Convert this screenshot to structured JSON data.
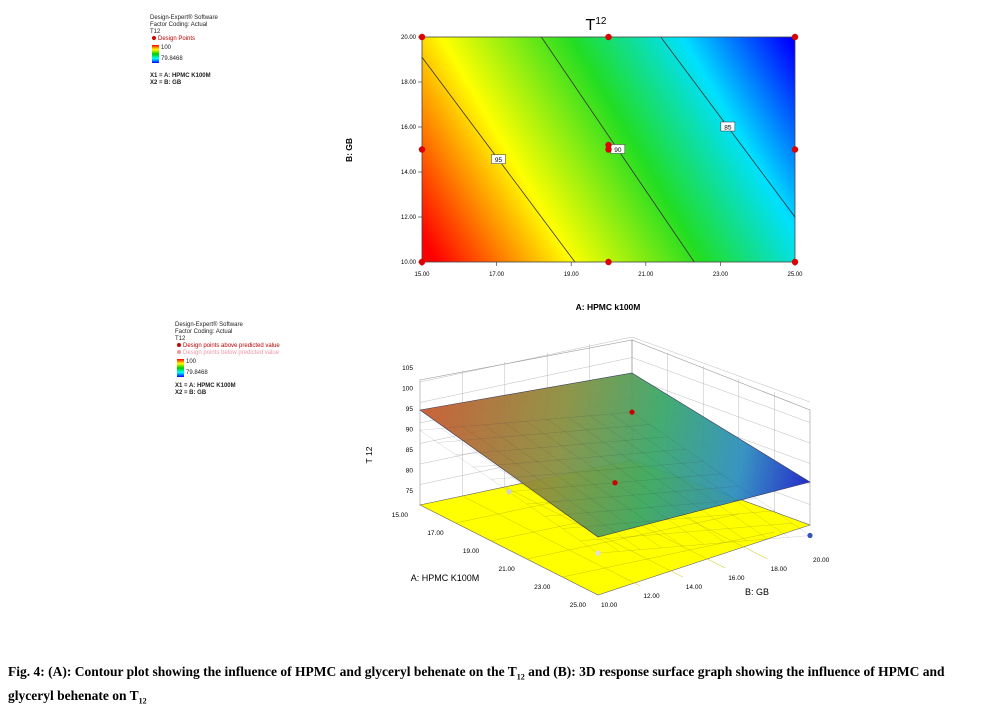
{
  "contour": {
    "software": "Design-Expert® Software",
    "factor_coding": "Factor Coding: Actual",
    "response": "T12",
    "design_points": "Design Points",
    "range_high": "100",
    "range_low": "79.8468",
    "x1": "X1 = A: HPMC K100M",
    "x2": "X2 = B: GB",
    "title_main": "T",
    "title_sup": "12",
    "xlabel": "A: HPMC k100M",
    "ylabel": "B: GB"
  },
  "surface": {
    "software": "Design-Expert® Software",
    "factor_coding": "Factor Coding: Actual",
    "response": "T12",
    "above": "Design points above predicted value",
    "below": "Design points below predicted value",
    "range_high": "100",
    "range_low": "79.8468",
    "x1": "X1 = A: HPMC K100M",
    "x2": "X2 = B: GB",
    "zlabel": "T 12",
    "alabel": "A: HPMC K100M",
    "blabel": "B: GB"
  },
  "caption": {
    "part1": "Fig. 4: (A): Contour plot showing the influence of HPMC and glyceryl behenate on the T",
    "sub1": "12",
    "part2": " and (B): 3D response surface graph showing the influence of HPMC and glyceryl behenate on T",
    "sub2": "12"
  },
  "chart_data": [
    {
      "type": "contour",
      "title": "T12",
      "xlabel": "A: HPMC k100M",
      "ylabel": "B: GB",
      "xlim": [
        15,
        25
      ],
      "ylim": [
        10,
        20
      ],
      "xticks": [
        "15.00",
        "17.00",
        "19.00",
        "21.00",
        "23.00",
        "25.00"
      ],
      "yticks": [
        "10.00",
        "12.00",
        "14.00",
        "16.00",
        "18.00",
        "20.00"
      ],
      "color_scale": [
        "#ff0000",
        "#ffff00",
        "#00cc00",
        "#00ffff",
        "#0000ff"
      ],
      "contour_lines": [
        {
          "level": "95",
          "points": [
            [
              15,
              19.1
            ],
            [
              19.1,
              10
            ]
          ]
        },
        {
          "level": "90",
          "points": [
            [
              18.2,
              20
            ],
            [
              22.3,
              10
            ]
          ]
        },
        {
          "level": "85",
          "points": [
            [
              21.4,
              20
            ],
            [
              25,
              12.0
            ]
          ]
        }
      ],
      "design_points": [
        [
          15,
          10
        ],
        [
          15,
          15
        ],
        [
          15,
          20
        ],
        [
          20,
          10
        ],
        [
          20,
          15
        ],
        [
          20,
          15.2
        ],
        [
          20,
          20
        ],
        [
          25,
          10
        ],
        [
          25,
          15
        ],
        [
          25,
          20
        ]
      ]
    },
    {
      "type": "surface",
      "zlabel": "T 12",
      "alabel": "A: HPMC K100M",
      "blabel": "B: GB",
      "a_range": [
        15,
        25
      ],
      "b_range": [
        10,
        20
      ],
      "z_range": [
        75,
        105
      ],
      "a_ticks": [
        "15.00",
        "17.00",
        "19.00",
        "21.00",
        "23.00",
        "25.00"
      ],
      "b_ticks": [
        "10.00",
        "12.00",
        "14.00",
        "16.00",
        "18.00",
        "20.00"
      ],
      "z_ticks": [
        "75",
        "80",
        "85",
        "90",
        "95",
        "100",
        "105"
      ],
      "corner_values": {
        "a15_b10": 100,
        "a25_b10": 89,
        "a15_b20": 91,
        "a25_b20": 79.8468
      }
    }
  ]
}
